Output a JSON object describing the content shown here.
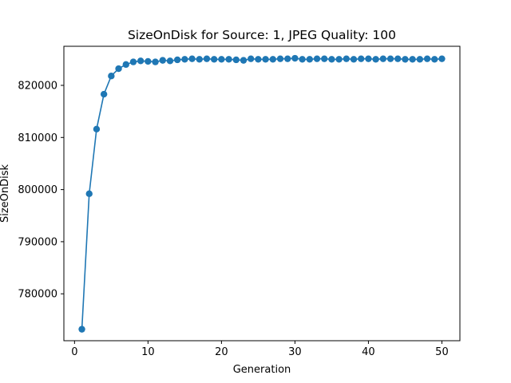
{
  "chart_data": {
    "type": "line",
    "title": "SizeOnDisk for Source: 1, JPEG Quality: 100",
    "xlabel": "Generation",
    "ylabel": "SizeOnDisk",
    "xlim": [
      -1.45,
      52.45
    ],
    "ylim": [
      771000,
      827500
    ],
    "xticks": [
      0,
      10,
      20,
      30,
      40,
      50
    ],
    "yticks": [
      780000,
      790000,
      800000,
      810000,
      820000
    ],
    "grid": false,
    "legend": "none",
    "marker": "circle",
    "series": [
      {
        "color": "#1f77b4",
        "x": [
          1,
          2,
          3,
          4,
          5,
          6,
          7,
          8,
          9,
          10,
          11,
          12,
          13,
          14,
          15,
          16,
          17,
          18,
          19,
          20,
          21,
          22,
          23,
          24,
          25,
          26,
          27,
          28,
          29,
          30,
          31,
          32,
          33,
          34,
          35,
          36,
          37,
          38,
          39,
          40,
          41,
          42,
          43,
          44,
          45,
          46,
          47,
          48,
          49,
          50
        ],
        "y": [
          773200,
          799200,
          811600,
          818300,
          821800,
          823200,
          824000,
          824500,
          824700,
          824600,
          824500,
          824800,
          824700,
          824900,
          825000,
          825100,
          825000,
          825100,
          825000,
          825000,
          825000,
          824900,
          824800,
          825100,
          825000,
          825000,
          825000,
          825100,
          825100,
          825200,
          825000,
          825000,
          825100,
          825100,
          825000,
          825000,
          825100,
          825000,
          825100,
          825100,
          825000,
          825100,
          825100,
          825100,
          825000,
          825000,
          825000,
          825100,
          825000,
          825100
        ]
      }
    ]
  }
}
